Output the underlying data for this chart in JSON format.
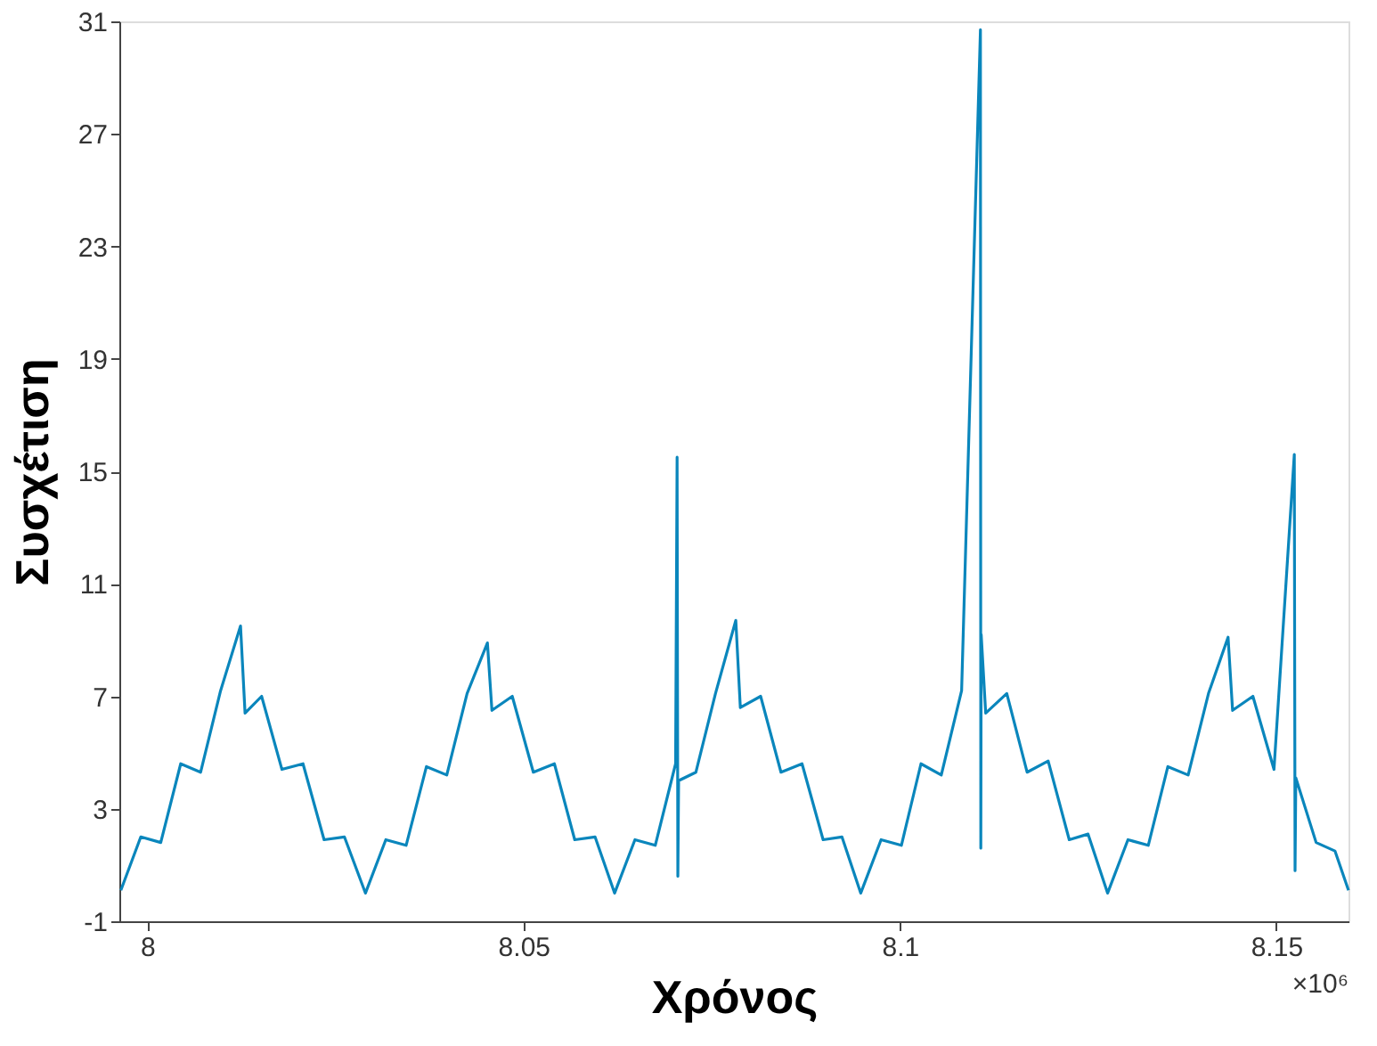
{
  "chart_data": {
    "type": "line",
    "xlabel": "Χρόνος",
    "ylabel": "Συσχέτιση",
    "annotations": [
      "×10⁶"
    ],
    "x": [
      7.9965,
      7.99915,
      8.0018,
      8.00445,
      8.0071,
      8.00975,
      8.0124,
      8.013,
      8.0152,
      8.0179,
      8.0207,
      8.0235,
      8.0262,
      8.029,
      8.0317,
      8.0344,
      8.0371,
      8.0398,
      8.0425,
      8.0452,
      8.0458,
      8.0485,
      8.0513,
      8.0541,
      8.0568,
      8.0595,
      8.0621,
      8.0648,
      8.0675,
      8.0702,
      8.0704,
      8.0705,
      8.0706,
      8.0729,
      8.0755,
      8.0782,
      8.0788,
      8.0815,
      8.0842,
      8.087,
      8.0898,
      8.0923,
      8.0948,
      8.0975,
      8.1002,
      8.1028,
      8.1055,
      8.1082,
      8.1107,
      8.11075,
      8.1108,
      8.1114,
      8.1142,
      8.1169,
      8.1197,
      8.1225,
      8.125,
      8.1276,
      8.1303,
      8.133,
      8.1356,
      8.1383,
      8.141,
      8.1436,
      8.1442,
      8.1469,
      8.1497,
      8.1524,
      8.1525,
      8.1526,
      8.1553,
      8.1578,
      8.1596
    ],
    "series": [
      {
        "color": "#0a86bc",
        "values": [
          0.1,
          2.0,
          1.8,
          4.6,
          4.3,
          7.2,
          9.5,
          6.4,
          7.0,
          4.4,
          4.6,
          1.9,
          2.0,
          0.0,
          1.9,
          1.7,
          4.5,
          4.2,
          7.1,
          8.9,
          6.5,
          7.0,
          4.3,
          4.6,
          1.9,
          2.0,
          0.0,
          1.9,
          1.7,
          4.6,
          15.5,
          0.6,
          4.0,
          4.3,
          7.1,
          9.7,
          6.6,
          7.0,
          4.3,
          4.6,
          1.9,
          2.0,
          0.0,
          1.9,
          1.7,
          4.6,
          4.2,
          7.2,
          30.7,
          1.6,
          9.2,
          6.4,
          7.1,
          4.3,
          4.7,
          1.9,
          2.1,
          0.0,
          1.9,
          1.7,
          4.5,
          4.2,
          7.1,
          9.1,
          6.5,
          7.0,
          4.4,
          15.6,
          0.8,
          4.1,
          1.8,
          1.5,
          0.1
        ]
      }
    ],
    "xlim": [
      7.9963,
      8.1596
    ],
    "xticks": [
      8,
      8.05,
      8.1,
      8.15
    ],
    "ylim": [
      -1,
      31
    ],
    "yticks": [
      -1,
      3,
      7,
      11,
      15,
      19,
      23,
      27,
      31
    ],
    "grid": false
  }
}
